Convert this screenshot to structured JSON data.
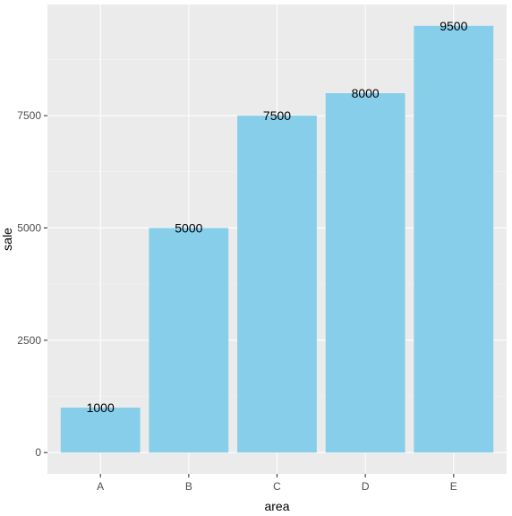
{
  "chart_data": {
    "type": "bar",
    "categories": [
      "A",
      "B",
      "C",
      "D",
      "E"
    ],
    "values": [
      1000,
      5000,
      7500,
      8000,
      9500
    ],
    "data_labels": [
      "1000",
      "5000",
      "7500",
      "8000",
      "9500"
    ],
    "title": "",
    "xlabel": "area",
    "ylabel": "sale",
    "ylim": [
      -475,
      9975
    ],
    "yticks": [
      0,
      2500,
      5000,
      7500
    ],
    "ytick_labels": [
      "0",
      "2500",
      "5000",
      "7500"
    ],
    "grid": true,
    "legend": "none",
    "colors": {
      "bar": "#87ceeb",
      "panel_background": "#ebebeb",
      "grid": "#ffffff"
    }
  }
}
